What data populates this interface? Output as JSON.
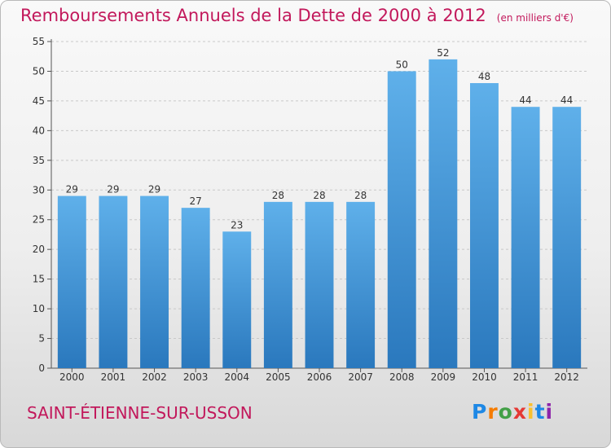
{
  "title": "Remboursements Annuels de la Dette de 2000 à 2012",
  "unit": "(en milliers d'€)",
  "commune": "SAINT-ÉTIENNE-SUR-USSON",
  "logo": {
    "letters": [
      "P",
      "r",
      "o",
      "x",
      "i",
      "t",
      "i"
    ],
    "colors": [
      "#1e88e5",
      "#f57c00",
      "#43a047",
      "#e53935",
      "#fbc02d",
      "#1e88e5",
      "#8e24aa"
    ]
  },
  "colors": {
    "bar": "#3a8fd6",
    "bar_light": "#5fb0ea",
    "bar_dark": "#2a78bd",
    "title": "#c2185b"
  },
  "chart_data": {
    "type": "bar",
    "categories": [
      "2000",
      "2001",
      "2002",
      "2003",
      "2004",
      "2005",
      "2006",
      "2007",
      "2008",
      "2009",
      "2010",
      "2011",
      "2012"
    ],
    "values": [
      29,
      29,
      29,
      27,
      23,
      28,
      28,
      28,
      50,
      52,
      48,
      44,
      44
    ],
    "yticks": [
      "0",
      "5",
      "10",
      "15",
      "20",
      "25",
      "30",
      "35",
      "40",
      "45",
      "50",
      "55"
    ],
    "ylim": [
      0,
      55
    ],
    "grid": true,
    "title": "Remboursements Annuels de la Dette de 2000 à 2012",
    "xlabel": "",
    "ylabel": ""
  }
}
